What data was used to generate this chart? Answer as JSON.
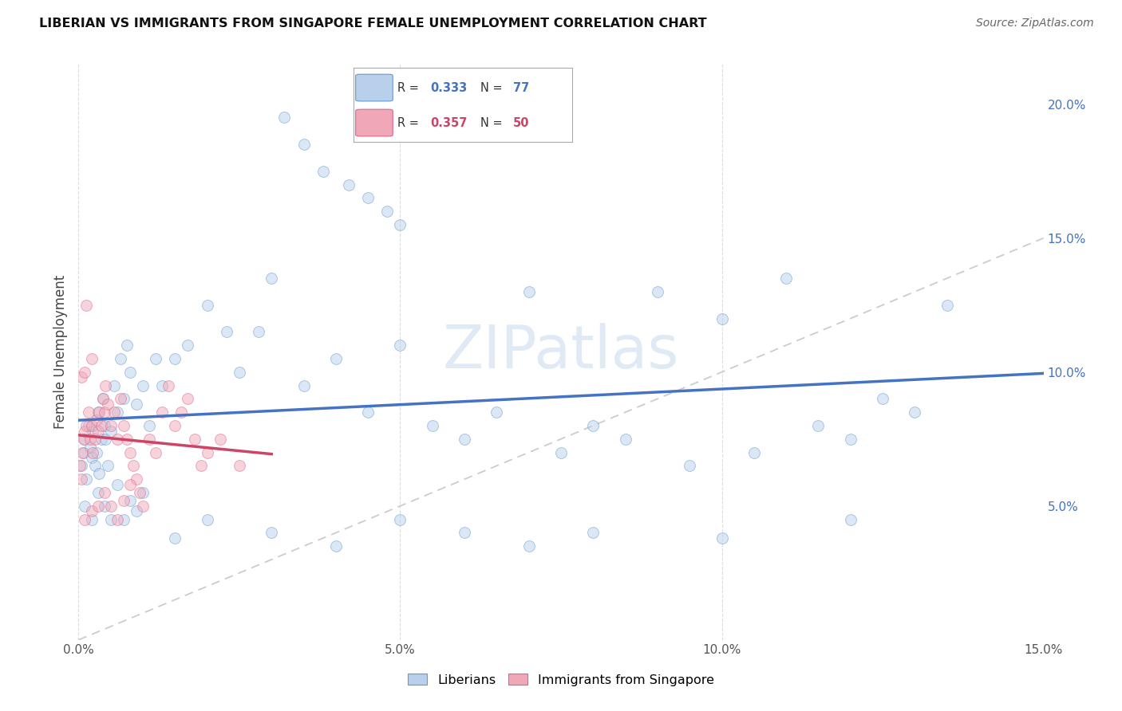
{
  "title": "LIBERIAN VS IMMIGRANTS FROM SINGAPORE FEMALE UNEMPLOYMENT CORRELATION CHART",
  "source": "Source: ZipAtlas.com",
  "ylabel": "Female Unemployment",
  "ylabel_right_ticks": [
    "5.0%",
    "10.0%",
    "15.0%",
    "20.0%"
  ],
  "ylabel_right_vals": [
    5.0,
    10.0,
    15.0,
    20.0
  ],
  "xmin": 0.0,
  "xmax": 15.0,
  "ymin": 0.0,
  "ymax": 21.5,
  "r_liberian": 0.333,
  "n_liberian": 77,
  "r_singapore": 0.357,
  "n_singapore": 50,
  "color_liberian_fill": "#b8d0ec",
  "color_liberian_edge": "#6699cc",
  "color_singapore_fill": "#f0a8b8",
  "color_singapore_edge": "#dd6688",
  "color_line_liberian": "#4472c4",
  "color_line_singapore": "#cc4466",
  "color_diag": "#cccccc",
  "marker_size": 100,
  "alpha": 0.5,
  "watermark": "ZIPatlas",
  "liberian_x": [
    0.05,
    0.08,
    0.1,
    0.12,
    0.15,
    0.18,
    0.2,
    0.22,
    0.25,
    0.28,
    0.3,
    0.32,
    0.35,
    0.38,
    0.4,
    0.42,
    0.45,
    0.5,
    0.55,
    0.6,
    0.65,
    0.7,
    0.75,
    0.8,
    0.9,
    1.0,
    1.1,
    1.2,
    1.3,
    1.5,
    1.7,
    2.0,
    2.3,
    2.5,
    2.8,
    3.0,
    3.5,
    4.0,
    4.5,
    5.0,
    5.5,
    6.0,
    6.5,
    7.0,
    7.5,
    8.0,
    8.5,
    9.0,
    9.5,
    10.0,
    10.5,
    11.0,
    11.5,
    12.0,
    12.5,
    13.0,
    13.5,
    0.1,
    0.2,
    0.3,
    0.4,
    0.5,
    0.6,
    0.7,
    0.8,
    0.9,
    1.0,
    1.5,
    2.0,
    3.0,
    4.0,
    5.0,
    6.0,
    7.0,
    8.0,
    10.0,
    12.0
  ],
  "liberian_y": [
    6.5,
    7.0,
    7.5,
    6.0,
    8.0,
    7.2,
    6.8,
    7.8,
    6.5,
    7.0,
    8.5,
    6.2,
    7.5,
    9.0,
    8.0,
    7.5,
    6.5,
    7.8,
    9.5,
    8.5,
    10.5,
    9.0,
    11.0,
    10.0,
    8.8,
    9.5,
    8.0,
    10.5,
    9.5,
    10.5,
    11.0,
    12.5,
    11.5,
    10.0,
    11.5,
    13.5,
    9.5,
    10.5,
    8.5,
    11.0,
    8.0,
    7.5,
    8.5,
    13.0,
    7.0,
    8.0,
    7.5,
    13.0,
    6.5,
    12.0,
    7.0,
    13.5,
    8.0,
    7.5,
    9.0,
    8.5,
    12.5,
    5.0,
    4.5,
    5.5,
    5.0,
    4.5,
    5.8,
    4.5,
    5.2,
    4.8,
    5.5,
    3.8,
    4.5,
    4.0,
    3.5,
    4.5,
    4.0,
    3.5,
    4.0,
    3.8,
    4.5
  ],
  "liberian_high_x": [
    3.2,
    3.5,
    3.8,
    4.2,
    4.5,
    4.8,
    5.0
  ],
  "liberian_high_y": [
    19.5,
    18.5,
    17.5,
    17.0,
    16.5,
    16.0,
    15.5
  ],
  "singapore_x": [
    0.02,
    0.04,
    0.06,
    0.08,
    0.1,
    0.12,
    0.15,
    0.18,
    0.2,
    0.22,
    0.25,
    0.28,
    0.3,
    0.32,
    0.35,
    0.38,
    0.4,
    0.42,
    0.45,
    0.5,
    0.55,
    0.6,
    0.65,
    0.7,
    0.75,
    0.8,
    0.85,
    0.9,
    0.95,
    1.0,
    1.1,
    1.2,
    1.3,
    1.4,
    1.5,
    1.6,
    1.7,
    1.8,
    1.9,
    2.0,
    2.2,
    2.5,
    0.1,
    0.2,
    0.3,
    0.4,
    0.5,
    0.6,
    0.7,
    0.8
  ],
  "singapore_y": [
    6.5,
    6.0,
    7.0,
    7.5,
    7.8,
    8.0,
    8.5,
    7.5,
    8.0,
    7.0,
    7.5,
    8.2,
    7.8,
    8.5,
    8.0,
    9.0,
    8.5,
    9.5,
    8.8,
    8.0,
    8.5,
    7.5,
    9.0,
    8.0,
    7.5,
    7.0,
    6.5,
    6.0,
    5.5,
    5.0,
    7.5,
    7.0,
    8.5,
    9.5,
    8.0,
    8.5,
    9.0,
    7.5,
    6.5,
    7.0,
    7.5,
    6.5,
    4.5,
    4.8,
    5.0,
    5.5,
    5.0,
    4.5,
    5.2,
    5.8
  ],
  "singapore_high": [
    [
      0.05,
      9.8
    ],
    [
      0.1,
      10.0
    ],
    [
      0.12,
      12.5
    ],
    [
      0.2,
      10.5
    ]
  ]
}
